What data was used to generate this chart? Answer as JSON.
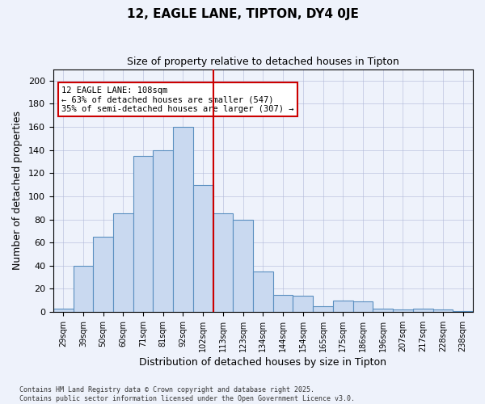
{
  "title": "12, EAGLE LANE, TIPTON, DY4 0JE",
  "subtitle": "Size of property relative to detached houses in Tipton",
  "xlabel": "Distribution of detached houses by size in Tipton",
  "ylabel": "Number of detached properties",
  "categories": [
    "29sqm",
    "39sqm",
    "50sqm",
    "60sqm",
    "71sqm",
    "81sqm",
    "92sqm",
    "102sqm",
    "113sqm",
    "123sqm",
    "134sqm",
    "144sqm",
    "154sqm",
    "165sqm",
    "175sqm",
    "186sqm",
    "196sqm",
    "207sqm",
    "217sqm",
    "228sqm",
    "238sqm"
  ],
  "values": [
    3,
    40,
    65,
    85,
    135,
    140,
    160,
    110,
    85,
    80,
    35,
    15,
    14,
    5,
    10,
    9,
    3,
    2,
    3,
    2,
    1
  ],
  "bar_color": "#c9d9f0",
  "bar_edge_color": "#5a8fc0",
  "background_color": "#eef2fb",
  "grid_color": "#b0b8d8",
  "vline_color": "#cc0000",
  "annotation_text": "12 EAGLE LANE: 108sqm\n← 63% of detached houses are smaller (547)\n35% of semi-detached houses are larger (307) →",
  "annotation_box_color": "#cc0000",
  "footer": "Contains HM Land Registry data © Crown copyright and database right 2025.\nContains public sector information licensed under the Open Government Licence v3.0.",
  "ylim": [
    0,
    210
  ],
  "yticks": [
    0,
    20,
    40,
    60,
    80,
    100,
    120,
    140,
    160,
    180,
    200
  ]
}
